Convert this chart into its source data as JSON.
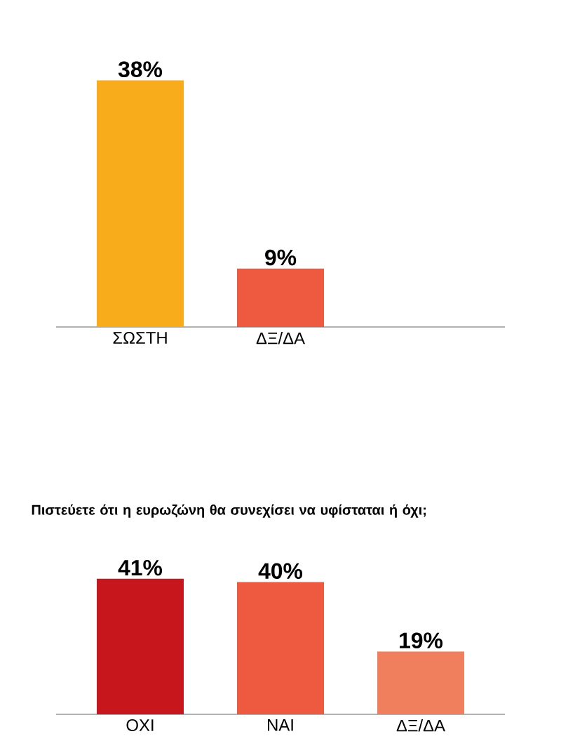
{
  "chart_data": [
    {
      "type": "bar",
      "categories": [
        "ΣΩΣΤΗ",
        "ΔΞ/ΔΑ"
      ],
      "values": [
        38,
        9
      ],
      "colors": [
        "#f8ac1c",
        "#ee5a40"
      ],
      "value_labels": [
        "38%",
        "9%"
      ]
    },
    {
      "type": "bar",
      "title": "Πιστεύετε ότι η ευρωζώνη θα συνεχίσει να υφίσταται ή όχι;",
      "categories": [
        "ΟΧΙ",
        "ΝΑΙ",
        "ΔΞ/ΔΑ"
      ],
      "values": [
        41,
        40,
        19
      ],
      "colors": [
        "#c8161d",
        "#ee5a40",
        "#f07f5e"
      ],
      "value_labels": [
        "41%",
        "40%",
        "19%"
      ]
    }
  ]
}
